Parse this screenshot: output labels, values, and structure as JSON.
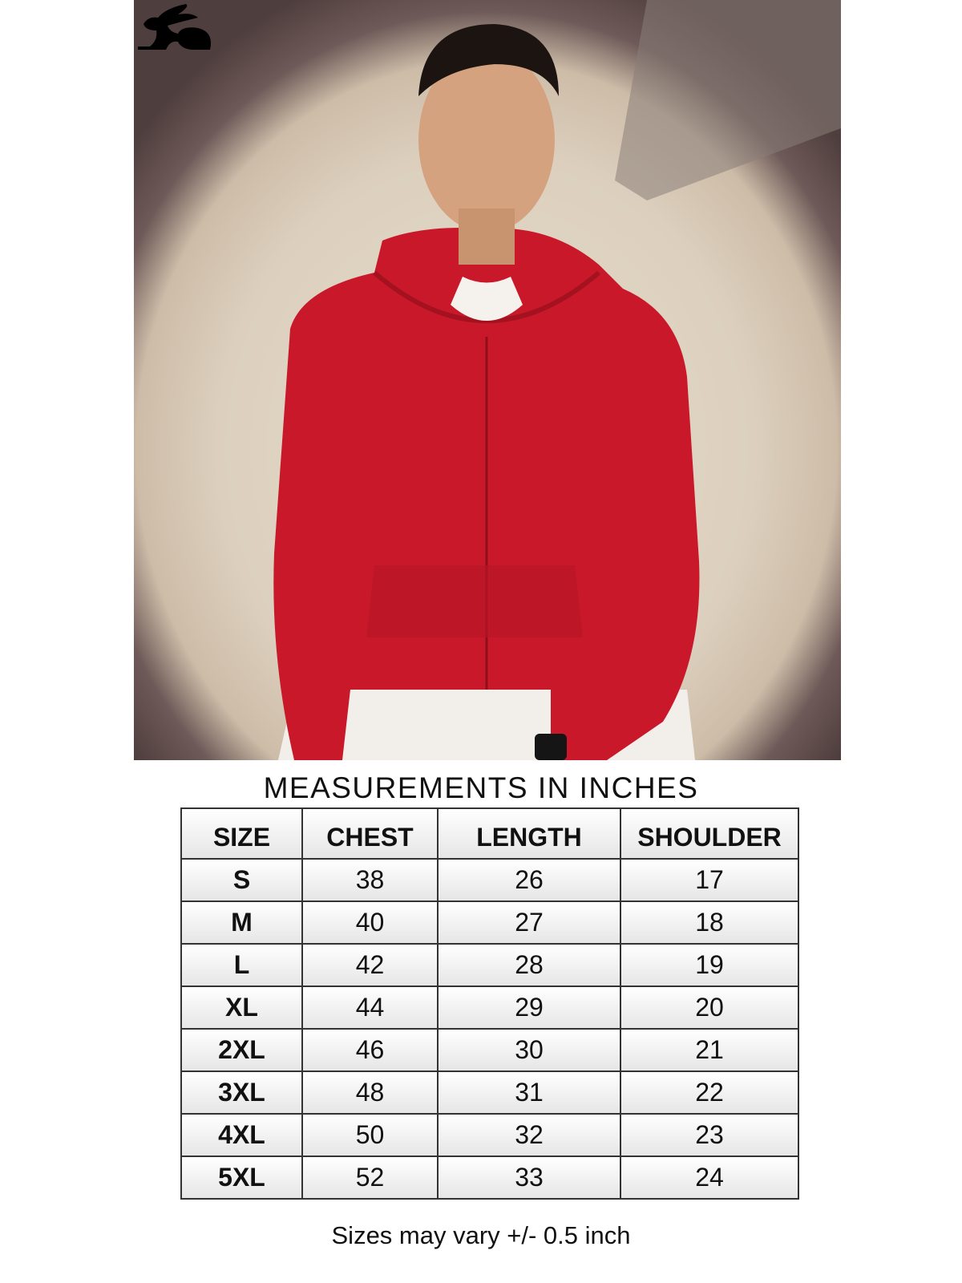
{
  "title": "MEASUREMENTS IN INCHES",
  "headers": [
    "SIZE",
    "CHEST",
    "LENGTH",
    "SHOULDER"
  ],
  "rows": [
    [
      "S",
      "38",
      "26",
      "17"
    ],
    [
      "M",
      "40",
      "27",
      "18"
    ],
    [
      "L",
      "42",
      "28",
      "19"
    ],
    [
      "XL",
      "44",
      "29",
      "20"
    ],
    [
      "2XL",
      "46",
      "30",
      "21"
    ],
    [
      "3XL",
      "48",
      "31",
      "22"
    ],
    [
      "4XL",
      "50",
      "32",
      "23"
    ],
    [
      "5XL",
      "52",
      "33",
      "24"
    ]
  ],
  "note": "Sizes may vary +/- 0.5 inch",
  "colors": {
    "hoodie": "#c8182a",
    "logo": "#000000"
  }
}
